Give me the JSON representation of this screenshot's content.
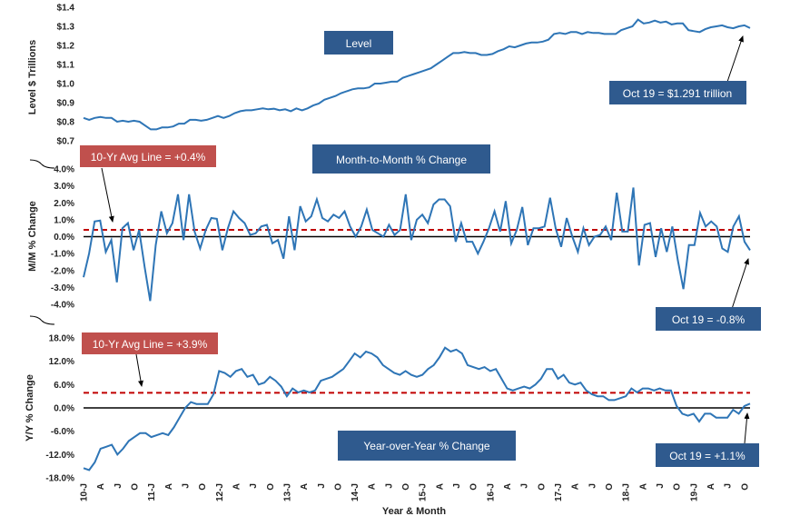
{
  "colors": {
    "line": "#2e75b6",
    "avg": "#c00000",
    "box_blue": "#2f5a8e",
    "box_red": "#c0504d",
    "zero": "#000000"
  },
  "chart_data": [
    {
      "type": "line",
      "ylabel": "Level $ Trillions",
      "box_label": "Level",
      "ylim": [
        0.7,
        1.4
      ],
      "yticks": [
        0.7,
        0.8,
        0.9,
        1.0,
        1.1,
        1.2,
        1.3,
        1.4
      ],
      "ytick_labels": [
        "$0.7",
        "$0.8",
        "$0.9",
        "$1.0",
        "$1.1",
        "$1.2",
        "$1.3",
        "$1.4"
      ],
      "annotation": "Oct 19 = $1.291 trillion",
      "values": [
        0.82,
        0.81,
        0.82,
        0.825,
        0.82,
        0.82,
        0.8,
        0.805,
        0.8,
        0.805,
        0.8,
        0.78,
        0.76,
        0.76,
        0.77,
        0.77,
        0.775,
        0.79,
        0.79,
        0.81,
        0.81,
        0.805,
        0.81,
        0.82,
        0.83,
        0.82,
        0.83,
        0.845,
        0.855,
        0.86,
        0.86,
        0.865,
        0.87,
        0.865,
        0.868,
        0.86,
        0.865,
        0.855,
        0.87,
        0.86,
        0.87,
        0.885,
        0.895,
        0.915,
        0.925,
        0.935,
        0.95,
        0.96,
        0.97,
        0.975,
        0.975,
        0.98,
        1.0,
        1.0,
        1.005,
        1.01,
        1.01,
        1.03,
        1.04,
        1.05,
        1.06,
        1.07,
        1.08,
        1.1,
        1.12,
        1.14,
        1.16,
        1.16,
        1.165,
        1.16,
        1.16,
        1.15,
        1.15,
        1.155,
        1.17,
        1.18,
        1.195,
        1.19,
        1.2,
        1.21,
        1.215,
        1.215,
        1.22,
        1.23,
        1.26,
        1.265,
        1.26,
        1.27,
        1.27,
        1.26,
        1.27,
        1.265,
        1.265,
        1.26,
        1.26,
        1.26,
        1.28,
        1.29,
        1.3,
        1.335,
        1.315,
        1.32,
        1.33,
        1.32,
        1.325,
        1.31,
        1.315,
        1.315,
        1.28,
        1.275,
        1.27,
        1.285,
        1.295,
        1.3,
        1.305,
        1.295,
        1.29,
        1.3,
        1.305,
        1.291
      ]
    },
    {
      "type": "line",
      "ylabel": "M/M % Change",
      "box_label": "Month-to-Month % Change",
      "ylim": [
        -4.0,
        4.0
      ],
      "yticks": [
        -4,
        -3,
        -2,
        -1,
        0,
        1,
        2,
        3,
        4
      ],
      "ytick_labels": [
        "-4.0%",
        "-3.0%",
        "-2.0%",
        "-1.0%",
        "0.0%",
        "1.0%",
        "2.0%",
        "3.0%",
        "4.0%"
      ],
      "avg_value": 0.4,
      "avg_label": "10-Yr Avg Line = +0.4%",
      "annotation": "Oct 19 = -0.8%",
      "values": [
        -2.4,
        -1.0,
        0.9,
        0.95,
        -0.9,
        -0.2,
        -2.7,
        0.5,
        0.8,
        -0.8,
        0.4,
        -1.8,
        -3.8,
        -0.5,
        1.5,
        0.2,
        0.8,
        2.5,
        -0.2,
        2.5,
        0.3,
        -0.7,
        0.4,
        1.1,
        1.05,
        -0.8,
        0.5,
        1.5,
        1.1,
        0.8,
        0.1,
        0.2,
        0.6,
        0.7,
        -0.4,
        -0.2,
        -1.3,
        1.2,
        -0.8,
        1.8,
        0.9,
        1.2,
        2.2,
        1.1,
        0.9,
        1.3,
        1.1,
        1.5,
        0.6,
        0.0,
        0.6,
        1.6,
        0.4,
        0.2,
        0.0,
        0.7,
        0.1,
        0.4,
        2.5,
        -0.2,
        1.0,
        1.3,
        0.8,
        1.9,
        2.2,
        2.2,
        1.8,
        -0.3,
        0.8,
        -0.3,
        -0.3,
        -1.0,
        -0.3,
        0.5,
        1.5,
        0.3,
        2.1,
        -0.4,
        0.4,
        1.75,
        -0.5,
        0.5,
        0.5,
        0.6,
        2.3,
        0.5,
        -0.6,
        1.1,
        0.0,
        -0.9,
        0.5,
        -0.5,
        0.0,
        0.1,
        0.6,
        -0.2,
        2.6,
        0.3,
        0.3,
        2.9,
        -1.7,
        0.7,
        0.8,
        -1.2,
        0.5,
        -0.9,
        0.6,
        -1.4,
        -3.1,
        -0.5,
        -0.5,
        1.4,
        0.6,
        0.9,
        0.6,
        -0.7,
        -0.9,
        0.6,
        1.2,
        -0.3,
        -0.8
      ]
    },
    {
      "type": "line",
      "ylabel": "Y/Y % Change",
      "box_label": "Year-over-Year % Change",
      "ylim": [
        -18,
        18
      ],
      "yticks": [
        -18,
        -12,
        -6,
        0,
        6,
        12,
        18
      ],
      "ytick_labels": [
        "-18.0%",
        "-12.0%",
        "-6.0%",
        "0.0%",
        "6.0%",
        "12.0%",
        "18.0%"
      ],
      "avg_value": 3.9,
      "avg_label": "10-Yr Avg Line = +3.9%",
      "annotation": "Oct 19 = +1.1%",
      "xlabel": "Year & Month",
      "x_tick_labels": [
        "10-J",
        "A",
        "J",
        "O",
        "11-J",
        "A",
        "J",
        "O",
        "12-J",
        "A",
        "J",
        "O",
        "13-J",
        "A",
        "J",
        "O",
        "14-J",
        "A",
        "J",
        "O",
        "15-J",
        "A",
        "J",
        "O",
        "16-J",
        "A",
        "J",
        "O",
        "17-J",
        "A",
        "J",
        "O",
        "18-J",
        "A",
        "J",
        "O",
        "19-J",
        "A",
        "J",
        "O"
      ],
      "values": [
        -15.5,
        -16.0,
        -14.0,
        -10.5,
        -10.0,
        -9.5,
        -12.0,
        -10.5,
        -8.5,
        -7.5,
        -6.5,
        -6.5,
        -7.5,
        -7.0,
        -6.5,
        -7.0,
        -5.0,
        -2.5,
        0.0,
        1.5,
        1.0,
        1.0,
        1.0,
        3.5,
        9.5,
        9.0,
        8.0,
        9.5,
        10.0,
        8.0,
        8.5,
        6.0,
        6.5,
        8.0,
        7.0,
        5.5,
        3.0,
        5.0,
        4.0,
        4.5,
        4.0,
        4.5,
        7.0,
        7.5,
        8.0,
        9.0,
        10.0,
        12.0,
        14.0,
        13.0,
        14.5,
        14.0,
        13.0,
        11.0,
        10.0,
        9.0,
        8.5,
        9.5,
        8.5,
        8.0,
        8.5,
        10.0,
        11.0,
        13.0,
        15.5,
        14.5,
        15.0,
        14.0,
        11.0,
        10.5,
        10.0,
        10.5,
        9.5,
        10.0,
        7.5,
        5.0,
        4.5,
        5.0,
        5.5,
        5.0,
        6.0,
        7.5,
        10.0,
        10.0,
        7.5,
        8.5,
        6.5,
        6.0,
        6.5,
        4.5,
        3.5,
        3.0,
        3.0,
        2.0,
        2.0,
        2.5,
        3.0,
        5.0,
        4.0,
        5.0,
        5.0,
        4.5,
        5.0,
        4.5,
        4.5,
        0.5,
        -1.5,
        -2.0,
        -1.5,
        -3.5,
        -1.5,
        -1.5,
        -2.5,
        -2.5,
        -2.5,
        -0.5,
        -1.5,
        0.5,
        1.1
      ]
    }
  ]
}
